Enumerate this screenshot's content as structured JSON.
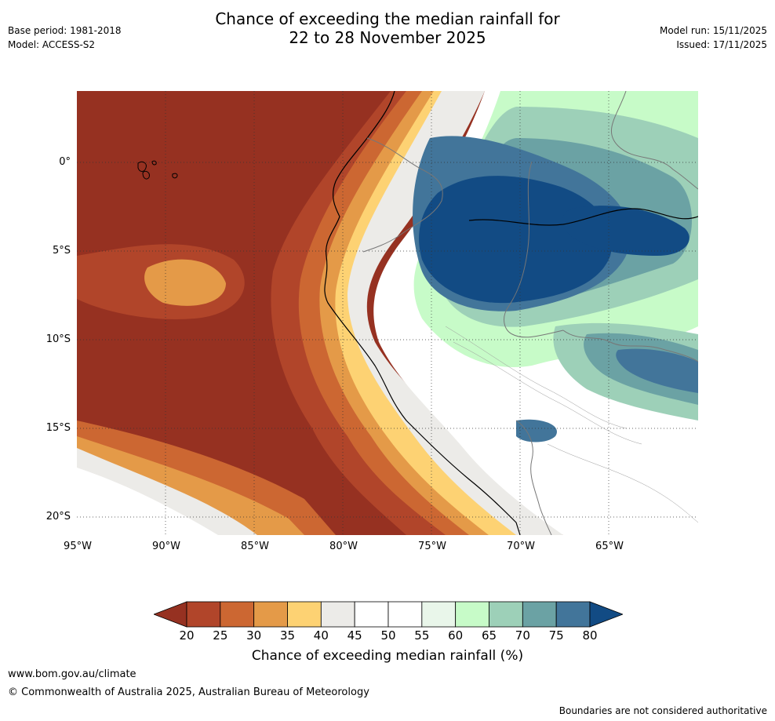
{
  "title": {
    "line1": "Chance of exceeding the median rainfall for",
    "line2": "22 to 28 November 2025"
  },
  "meta_left": {
    "base_period": "Base period: 1981-2018",
    "model": "Model: ACCESS-S2"
  },
  "meta_right": {
    "model_run": "Model run: 15/11/2025",
    "issued": "Issued: 17/11/2025"
  },
  "map": {
    "longitude_labels": [
      "95°W",
      "90°W",
      "85°W",
      "80°W",
      "75°W",
      "70°W",
      "65°W"
    ],
    "latitude_labels": [
      "0°",
      "5°S",
      "10°S",
      "15°S",
      "20°S"
    ]
  },
  "colorbar": {
    "ticks": [
      "20",
      "25",
      "30",
      "35",
      "40",
      "45",
      "50",
      "55",
      "60",
      "65",
      "70",
      "75",
      "80"
    ],
    "colors": [
      "#963121",
      "#b1452a",
      "#cc6732",
      "#e49a48",
      "#fdd273",
      "#ecebe8",
      "#ffffff",
      "#ffffff",
      "#e9f6ea",
      "#c7fbc8",
      "#9dd0b8",
      "#6ba2a4",
      "#42759a",
      "#124b84"
    ],
    "label": "Chance of exceeding median rainfall (%)"
  },
  "footer": {
    "url": "www.bom.gov.au/climate",
    "copyright": "© Commonwealth of Australia 2025, Australian Bureau of Meteorology",
    "note": "Boundaries are not considered authoritative"
  }
}
